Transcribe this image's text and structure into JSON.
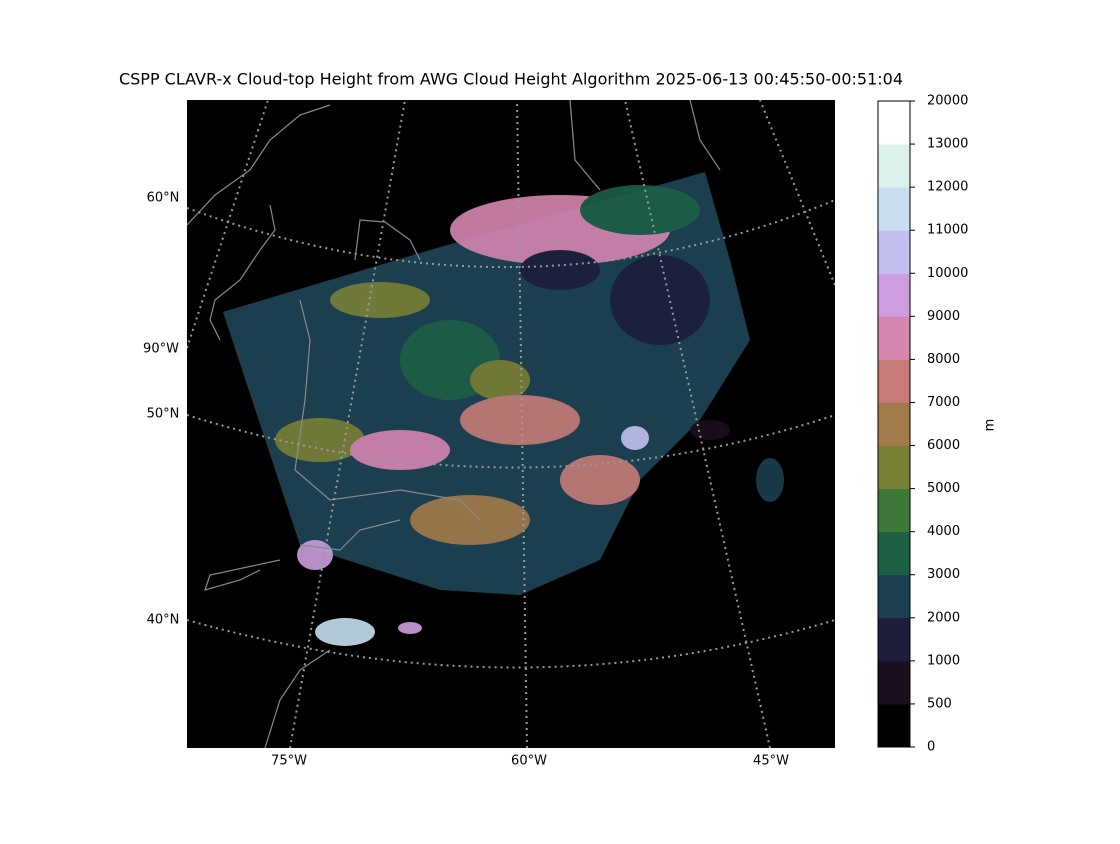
{
  "title": "CSPP CLAVR-x Cloud-top Height from AWG Cloud Height Algorithm 2025-06-13 00:45:50-00:51:04",
  "map": {
    "lat_labels": [
      "60°N",
      "50°N",
      "40°N"
    ],
    "lon_labels_left": [
      "90°W"
    ],
    "lon_labels_bottom": [
      "75°W",
      "60°W",
      "45°W"
    ]
  },
  "colorbar": {
    "label": "m",
    "ticks": [
      0,
      500,
      1000,
      2000,
      3000,
      4000,
      5000,
      6000,
      7000,
      8000,
      9000,
      10000,
      11000,
      12000,
      13000,
      20000
    ],
    "colors": [
      "#000000",
      "#1a0f1f",
      "#1c1e3b",
      "#1b3f4f",
      "#1d6046",
      "#3e7839",
      "#7a7f36",
      "#a37a4a",
      "#c67b77",
      "#d585b0",
      "#cd9de0",
      "#c2c0f0",
      "#c7dff0",
      "#dcf0ec",
      "#ffffff"
    ]
  }
}
